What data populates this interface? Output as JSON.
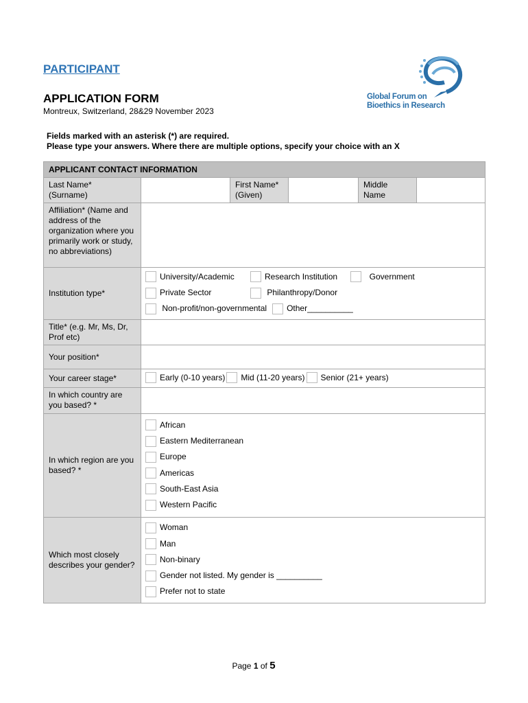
{
  "header": {
    "kicker": "PARTICIPANT",
    "title": "APPLICATION FORM",
    "subtitle": "Montreux, Switzerland, 28&29 November 2023",
    "instructions": [
      "Fields marked with an asterisk (*) are required.",
      "Please type your answers. Where there are multiple options, specify your choice with an X"
    ]
  },
  "logo": {
    "line1": "Global Forum on",
    "line2": "Bioethics in Research",
    "color": "#2a6fa8"
  },
  "form": {
    "section": "APPLICANT CONTACT INFORMATION",
    "last_name": [
      "Last Name*",
      "(Surname)"
    ],
    "first_name": [
      "First Name*",
      "(Given)"
    ],
    "middle_name": [
      "Middle",
      "Name"
    ],
    "affiliation": "Affiliation* (Name and address of the organization where you primarily work or study, no abbreviations)",
    "institution_label": "Institution type*",
    "institution_options": [
      "University/Academic",
      "Research Institution",
      "Government",
      "Private Sector",
      "Philanthropy/Donor",
      "Non-profit/non-governmental",
      "Other__________"
    ],
    "title_label": "Title* (e.g. Mr, Ms, Dr, Prof etc)",
    "position_label": "Your position*",
    "career_label": "Your career stage*",
    "career_options": [
      "Early (0-10 years)",
      "Mid (11-20 years)",
      "Senior (21+ years)"
    ],
    "country_label": "In which country are you based? *",
    "region_label": "In which region are you based? *",
    "region_options": [
      "African",
      "Eastern Mediterranean",
      "Europe",
      "Americas",
      "South-East Asia",
      "Western Pacific"
    ],
    "gender_label": "Which most closely describes your gender?",
    "gender_options": [
      "Woman",
      "Man",
      "Non-binary",
      "Gender not listed. My gender is __________",
      "Prefer not to state"
    ]
  },
  "footer": {
    "prefix": "Page ",
    "current": "1",
    "of": " of ",
    "total": "5"
  }
}
